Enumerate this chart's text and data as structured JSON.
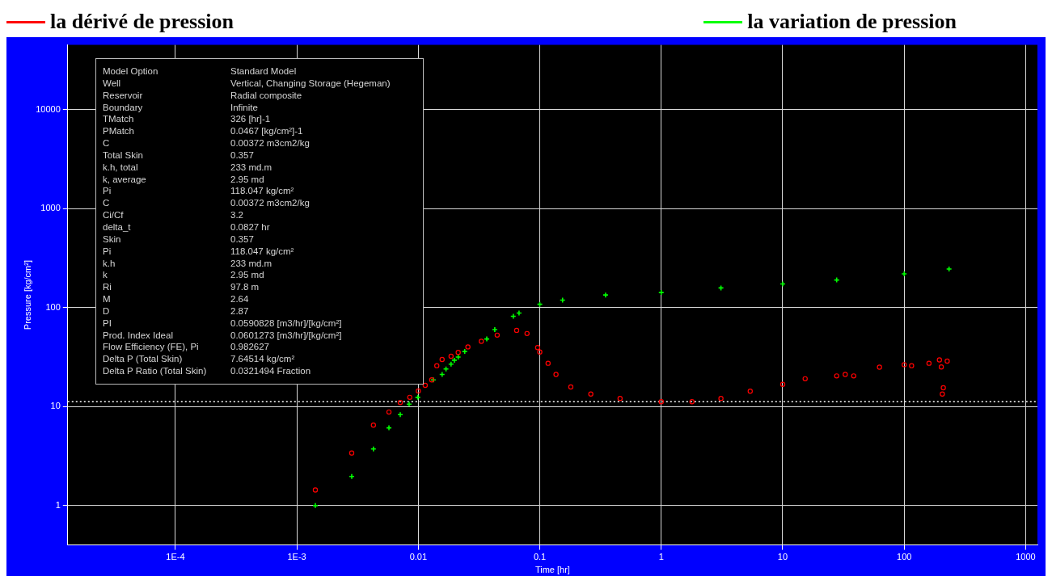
{
  "chart_data": {
    "type": "scatter",
    "xlabel": "Time [hr]",
    "ylabel": "Pressure [kg/cm²]",
    "log": "xy",
    "grid": true,
    "legend": "top",
    "xlim": [
      1.3e-05,
      1250
    ],
    "ylim": [
      0.4,
      45000
    ],
    "xticks": [
      {
        "value": 0.0001,
        "label": "1E-4"
      },
      {
        "value": 0.001,
        "label": "1E-3"
      },
      0.01,
      0.1,
      1,
      10,
      100,
      1000
    ],
    "yticks": [
      1,
      10,
      100,
      1000,
      10000
    ],
    "ref_lines": [
      {
        "axis": "y",
        "value": 11.2,
        "color": "#ffffff",
        "line_style": "dotted"
      }
    ],
    "series": [
      {
        "name": "la dérivé de pression",
        "color": "#ff0000",
        "marker": "circle",
        "x": [
          0.00142,
          0.00283,
          0.00427,
          0.00573,
          0.0071,
          0.0085,
          0.01,
          0.0114,
          0.0129,
          0.0142,
          0.0157,
          0.0186,
          0.0213,
          0.0256,
          0.033,
          0.0446,
          0.0645,
          0.0785,
          0.096,
          0.1,
          0.117,
          0.136,
          0.18,
          0.263,
          0.458,
          1.0,
          1.79,
          3.1,
          5.4,
          10,
          15.3,
          27.8,
          32.7,
          38.4,
          62.6,
          100,
          115,
          160,
          195,
          202,
          226,
          210,
          206
        ],
        "values": [
          1.44,
          3.4,
          6.5,
          8.8,
          11.0,
          12.4,
          14.4,
          16.4,
          18.6,
          25.9,
          29.9,
          32.2,
          35.3,
          40.1,
          45.6,
          52.7,
          58.9,
          54.7,
          39.4,
          35.6,
          27.4,
          21.1,
          15.8,
          13.4,
          12.1,
          11.2,
          11.2,
          12.1,
          14.3,
          16.8,
          19.1,
          20.4,
          21.1,
          20.4,
          25.0,
          26.5,
          25.9,
          27.4,
          29.6,
          25.1,
          28.8,
          15.5,
          13.4
        ]
      },
      {
        "name": "la variation de pression",
        "color": "#00ff00",
        "marker": "cross",
        "x": [
          0.00142,
          0.00283,
          0.00427,
          0.00573,
          0.0071,
          0.0084,
          0.0099,
          0.0133,
          0.0157,
          0.0169,
          0.0186,
          0.0198,
          0.0213,
          0.0241,
          0.0366,
          0.0426,
          0.0605,
          0.0675,
          0.1,
          0.154,
          0.348,
          1.0,
          3.1,
          10,
          27.8,
          100,
          234
        ],
        "values": [
          1.0,
          1.97,
          3.73,
          6.1,
          8.3,
          10.6,
          12.4,
          18.6,
          21.1,
          24,
          26.8,
          29.4,
          31.6,
          36,
          48.2,
          60,
          81.8,
          88,
          108,
          119,
          134,
          142,
          158,
          173,
          190,
          219,
          245
        ]
      }
    ],
    "annotations": [
      "Model Option",
      "Standard Model",
      "Well",
      "Vertical, Changing Storage (Hegeman)",
      "Reservoir",
      "Radial composite",
      "Boundary",
      "Infinite",
      "TMatch",
      "326 [hr]-1",
      "PMatch",
      "0.0467 [kg/cm²]-1",
      "C",
      "0.00372 m3cm2/kg",
      "Total Skin",
      "0.357",
      "k.h, total",
      "233 md.m",
      "k, average",
      "2.95 md",
      "Pi",
      "118.047 kg/cm²",
      "C",
      "0.00372 m3cm2/kg",
      "Ci/Cf",
      "3.2",
      "delta_t",
      "0.0827 hr",
      "Skin",
      "0.357",
      "Pi",
      "118.047 kg/cm²",
      "k.h",
      "233 md.m",
      "k",
      "2.95 md",
      "Ri",
      "97.8 m",
      "M",
      "2.64",
      "D",
      "2.87",
      "PI",
      "0.0590828 [m3/hr]/[kg/cm²]",
      "Prod. Index Ideal",
      "0.0601273 [m3/hr]/[kg/cm²]",
      "Flow Efficiency (FE), Pi",
      "0.982627",
      "Delta P (Total Skin)",
      "7.64514 kg/cm²",
      "Delta P Ratio (Total Skin)",
      "0.0321494 Fraction"
    ]
  }
}
